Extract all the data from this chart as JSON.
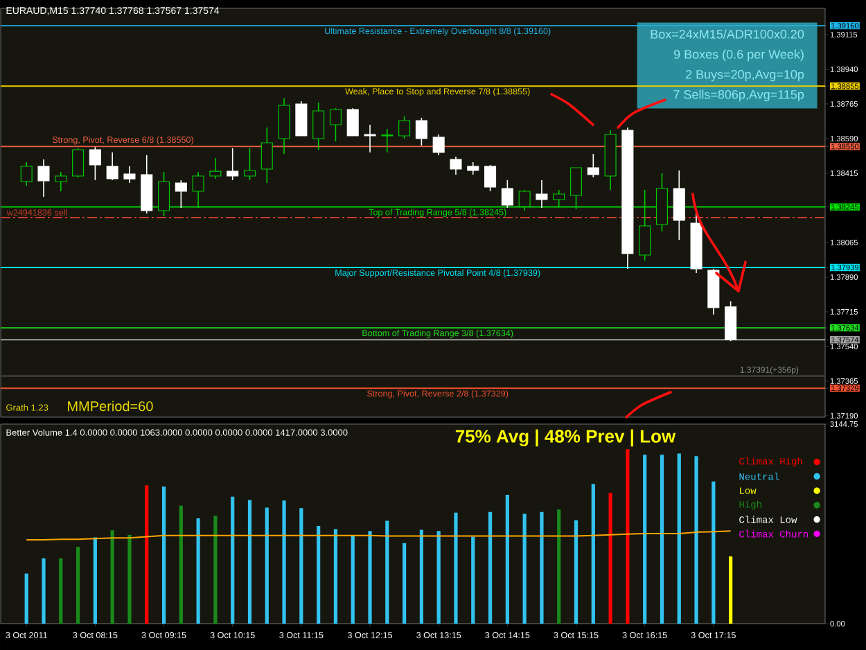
{
  "chart_data": [
    {
      "type": "candlestick",
      "title": "EURAUD,M15 1.37740 1.37768 1.37567 1.37574",
      "categories": [
        null,
        null,
        null,
        null,
        null,
        null,
        null,
        null,
        null,
        null,
        null,
        null,
        null,
        null,
        null,
        null,
        null,
        null,
        null,
        null,
        null,
        null,
        null,
        null,
        null,
        null,
        null,
        null,
        null,
        null,
        null,
        null,
        null,
        null,
        null,
        null,
        null,
        null,
        null,
        null,
        null,
        null,
        null,
        null,
        null,
        null,
        null,
        null
      ],
      "ohlc": [
        null,
        [
          1.38373,
          1.38471,
          1.38352,
          1.3845
        ],
        [
          1.3845,
          1.38485,
          1.38296,
          1.38377
        ],
        [
          1.38373,
          1.38422,
          1.38324,
          1.38401
        ],
        [
          1.38401,
          1.38541,
          1.38394,
          1.38534
        ],
        [
          1.38534,
          1.38548,
          1.3838,
          1.38457
        ],
        [
          1.3845,
          1.3852,
          1.3838,
          1.38387
        ],
        [
          1.38411,
          1.3845,
          1.38366,
          1.38386
        ],
        [
          1.38408,
          1.38506,
          1.38212,
          1.38226
        ],
        [
          1.38226,
          1.38422,
          1.38198,
          1.38373
        ],
        [
          1.38366,
          1.3838,
          1.3824,
          1.38324
        ],
        [
          1.38324,
          1.38422,
          1.3824,
          1.38401
        ],
        [
          1.38401,
          1.38492,
          1.38387,
          1.38425
        ],
        [
          1.38425,
          1.38541,
          1.3838,
          1.38401
        ],
        [
          1.38401,
          1.38541,
          1.3838,
          1.38429
        ],
        [
          1.38436,
          1.38646,
          1.38366,
          1.38569
        ],
        [
          1.3859,
          1.38793,
          1.38513,
          1.38758
        ],
        [
          1.38765,
          1.38779,
          1.38604,
          1.38604
        ],
        [
          1.3859,
          1.38772,
          1.38534,
          1.3873
        ],
        [
          1.3866,
          1.38744,
          1.38576,
          1.38737
        ],
        [
          1.38737,
          1.38744,
          1.38604,
          1.38604
        ],
        [
          1.38611,
          1.3866,
          1.3852,
          1.38604
        ],
        [
          1.38604,
          1.38639,
          1.3852,
          1.38608
        ],
        [
          1.38604,
          1.38702,
          1.3859,
          1.38681
        ],
        [
          1.38681,
          1.38695,
          1.38555,
          1.3859
        ],
        [
          1.38597,
          1.38611,
          1.38506,
          1.3852
        ],
        [
          1.38485,
          1.38499,
          1.38408,
          1.38436
        ],
        [
          1.3845,
          1.38471,
          1.38408,
          1.38429
        ],
        [
          1.3845,
          1.38457,
          1.38324,
          1.38345
        ],
        [
          1.38338,
          1.3838,
          1.3824,
          1.38254
        ],
        [
          1.38247,
          1.38331,
          1.38226,
          1.38324
        ],
        [
          1.3831,
          1.3838,
          1.3824,
          1.38282
        ],
        [
          1.38282,
          1.38331,
          1.38247,
          1.3831
        ],
        [
          1.38303,
          1.38443,
          1.38233,
          1.38443
        ],
        [
          1.38443,
          1.38513,
          1.38394,
          1.38408
        ],
        [
          1.38401,
          1.38632,
          1.38331,
          1.38611
        ],
        [
          1.38632,
          1.38646,
          1.37932,
          1.38009
        ],
        [
          1.38002,
          1.38331,
          1.37974,
          1.38149
        ],
        [
          1.38156,
          1.38415,
          1.38121,
          1.38338
        ],
        [
          1.38338,
          1.38429,
          1.38079,
          1.38177
        ],
        [
          1.38163,
          1.38226,
          1.37911,
          1.37932
        ],
        [
          1.37925,
          1.37932,
          1.37701,
          1.37736
        ],
        [
          1.3774,
          1.37768,
          1.37567,
          1.37574
        ],
        null,
        null,
        null,
        null,
        null
      ],
      "ylim": [
        1.37183,
        1.39248
      ],
      "yticks": [
        {
          "value": 1.3916,
          "label": "1.39160"
        },
        1.39115,
        {
          "value": 1.3894,
          "label": "1.38940"
        },
        1.38855,
        1.38765,
        {
          "value": 1.3859,
          "label": "1.38590"
        },
        {
          "value": 1.3855,
          "label": "1.38550"
        },
        1.38415,
        1.38245,
        1.38065,
        1.37939,
        {
          "value": 1.3789,
          "label": "1.37890"
        },
        1.37715,
        1.37634,
        1.37574,
        {
          "value": 1.3754,
          "label": "1.37540"
        },
        1.37365,
        1.37329,
        {
          "value": 1.3719,
          "label": "1.37190"
        }
      ],
      "ref_lines": [
        {
          "axis": "y",
          "value": 1.3916,
          "label": "Ultimate Resistance - Extremely Overbought 8/8 (1.39160)",
          "color": "#1eb4e8"
        },
        {
          "axis": "y",
          "value": 1.38855,
          "label": "Weak, Place to Stop and Reverse 7/8 (1.38855)",
          "color": "#f0d000"
        },
        {
          "axis": "y",
          "value": 1.3855,
          "label": "Strong, Pivot, Reverse 6/8 (1.38550)",
          "color": "#f06040"
        },
        {
          "axis": "y",
          "value": 1.38245,
          "label": "Top of Trading Range 5/8 (1.38245)",
          "color": "#00e000"
        },
        {
          "axis": "y",
          "value": 1.37939,
          "label": "Major Support/Resistance Pivotal Point 4/8 (1.37939)",
          "color": "#00e0f0"
        },
        {
          "axis": "y",
          "value": 1.37634,
          "label": "Bottom of Trading Range 3/8 (1.37634)",
          "color": "#20e020"
        },
        {
          "axis": "y",
          "value": 1.37329,
          "label": "Strong, Pivot, Reverse 2/8 (1.37329)",
          "color": "#f05030"
        },
        {
          "axis": "y",
          "value": 1.38191,
          "label": "w24941836 sell",
          "color": "#c83c28",
          "line_style": "dashed"
        },
        {
          "axis": "y",
          "value": 1.37574,
          "color": "#a0a0a0"
        },
        {
          "axis": "y",
          "value": 1.37391,
          "color": "#505050"
        }
      ],
      "annotations": [
        "Box=24xM15/ADR100x0.20",
        "9 Boxes (0.6 per Week)",
        "2 Buys=20p,Avg=10p",
        "7 Sells=806p,Avg=115p",
        "Grath 1.23",
        "MMPeriod=60",
        {
          "text": "1.37391(+356p)",
          "y": 1.37391
        }
      ]
    },
    {
      "type": "bar",
      "title": "Better Volume 1.4 0.0000 0.0000 1063.0000 0.0000 0.0000 0.0000 1417.0000 3.0000",
      "categories": [
        null,
        "3 Oct 2011",
        null,
        null,
        null,
        "3 Oct 08:15",
        null,
        null,
        null,
        "3 Oct 09:15",
        null,
        null,
        null,
        "3 Oct 10:15",
        null,
        null,
        null,
        "3 Oct 11:15",
        null,
        null,
        null,
        "3 Oct 12:15",
        null,
        null,
        null,
        "3 Oct 13:15",
        null,
        null,
        null,
        "3 Oct 14:15",
        null,
        null,
        null,
        "3 Oct 15:15",
        null,
        null,
        null,
        "3 Oct 16:15",
        null,
        null,
        null,
        "3 Oct 17:15",
        null,
        null,
        null,
        null,
        null,
        null
      ],
      "series": [
        {
          "name": "Climax High",
          "color": "#ff0000",
          "values": [
            null,
            null,
            null,
            null,
            null,
            null,
            null,
            null,
            2180,
            null,
            null,
            null,
            null,
            null,
            null,
            null,
            null,
            null,
            null,
            null,
            null,
            null,
            null,
            null,
            null,
            null,
            null,
            null,
            null,
            null,
            null,
            null,
            null,
            null,
            null,
            2060,
            2750,
            null,
            null,
            null,
            null,
            null,
            null,
            null,
            null,
            null,
            null,
            null
          ]
        },
        {
          "name": "Neutral",
          "color": "#33c3f0",
          "values": [
            null,
            790,
            1030,
            null,
            null,
            1360,
            null,
            null,
            null,
            2160,
            null,
            1660,
            null,
            2000,
            1950,
            1830,
            1940,
            1820,
            1540,
            1490,
            1390,
            1460,
            1620,
            1270,
            1480,
            1460,
            1750,
            1370,
            1760,
            2030,
            1730,
            1760,
            null,
            1630,
            2200,
            null,
            null,
            2660,
            2660,
            2680,
            2640,
            2240,
            null,
            null,
            null,
            null,
            null,
            null
          ]
        },
        {
          "name": "Low",
          "color": "#ffff00",
          "values": [
            null,
            null,
            null,
            null,
            null,
            null,
            null,
            null,
            null,
            null,
            null,
            null,
            null,
            null,
            null,
            null,
            null,
            null,
            null,
            null,
            null,
            null,
            null,
            null,
            null,
            null,
            null,
            null,
            null,
            null,
            null,
            null,
            null,
            null,
            null,
            null,
            null,
            null,
            null,
            null,
            null,
            null,
            1060,
            null,
            null,
            null,
            null,
            null
          ]
        },
        {
          "name": "High",
          "color": "#1a8a1a",
          "values": [
            null,
            null,
            null,
            1030,
            1210,
            null,
            1470,
            1400,
            null,
            null,
            1860,
            null,
            1700,
            null,
            null,
            null,
            null,
            null,
            null,
            null,
            null,
            null,
            null,
            null,
            null,
            null,
            null,
            null,
            null,
            null,
            null,
            null,
            1800,
            null,
            null,
            null,
            null,
            null,
            null,
            null,
            null,
            null,
            null,
            null,
            null,
            null,
            null,
            null
          ]
        },
        {
          "name": "Climax Low",
          "color": "#ffffff",
          "values": [
            null,
            null,
            null,
            null,
            null,
            null,
            null,
            null,
            null,
            null,
            null,
            null,
            null,
            null,
            null,
            null,
            null,
            null,
            null,
            null,
            null,
            null,
            null,
            null,
            null,
            null,
            null,
            null,
            null,
            null,
            null,
            null,
            null,
            null,
            null,
            null,
            null,
            null,
            null,
            null,
            null,
            null,
            null,
            null,
            null,
            null,
            null,
            null
          ]
        },
        {
          "name": "Climax Churn",
          "color": "#ff00ff",
          "values": [
            null,
            null,
            null,
            null,
            null,
            null,
            null,
            null,
            null,
            null,
            null,
            null,
            null,
            null,
            null,
            null,
            null,
            null,
            null,
            null,
            null,
            null,
            null,
            null,
            null,
            null,
            null,
            null,
            null,
            null,
            null,
            null,
            null,
            null,
            null,
            null,
            null,
            null,
            null,
            null,
            null,
            null,
            null,
            null,
            null,
            null,
            null,
            null
          ]
        },
        {
          "type": "line",
          "color": "#ffa500",
          "values": [
            null,
            1320,
            1320,
            1330,
            1330,
            1340,
            1350,
            1350,
            1370,
            1390,
            1390,
            1390,
            1390,
            1390,
            1390,
            1390,
            1390,
            1390,
            1390,
            1390,
            1390,
            1390,
            1380,
            1380,
            1380,
            1380,
            1380,
            1380,
            1380,
            1380,
            1380,
            1380,
            1380,
            1380,
            1390,
            1400,
            1410,
            1420,
            1420,
            1420,
            1440,
            1450,
            1460,
            null,
            null,
            null,
            null,
            null
          ]
        }
      ],
      "ylim": [
        0,
        3144.75
      ],
      "yticks": [
        {
          "value": 0,
          "label": "0.00"
        },
        {
          "value": 3144.75,
          "label": "3144.75"
        }
      ],
      "legend": "top right",
      "annotations": [
        "75% Avg | 48% Prev | Low"
      ]
    }
  ]
}
